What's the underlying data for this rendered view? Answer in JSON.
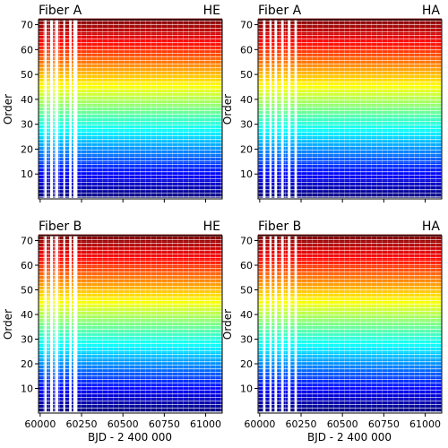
{
  "chart_data": {
    "type": "heatmap",
    "layout": "2x2 grid, shared x and y axes",
    "xlabel": "BJD - 2 400 000",
    "ylabel": "Order",
    "xlim": [
      59990,
      61100
    ],
    "ylim": [
      0,
      72
    ],
    "xticks": [
      60000,
      60250,
      60500,
      60750,
      61000
    ],
    "yticks": [
      10,
      20,
      30,
      40,
      50,
      60,
      70
    ],
    "colormap": "jet (blue at order 1 → red at order 72)",
    "colormap_stops": [
      "#00007f",
      "#0000ff",
      "#007fff",
      "#00ffff",
      "#7fff7f",
      "#ffff00",
      "#ff7f00",
      "#ff0000",
      "#7f0000"
    ],
    "panels": [
      {
        "title_left": "Fiber A",
        "title_right": "HE",
        "gaps_x": [
          [
            60025,
            60040
          ],
          [
            60060,
            60078
          ],
          [
            60090,
            60110
          ],
          [
            60140,
            60150
          ],
          [
            60175,
            60190
          ],
          [
            60200,
            60225
          ]
        ]
      },
      {
        "title_left": "Fiber A",
        "title_right": "HA",
        "gaps_x": [
          [
            60020,
            60035
          ],
          [
            60060,
            60072
          ],
          [
            60090,
            60105
          ],
          [
            60130,
            60145
          ],
          [
            60170,
            60185
          ],
          [
            60210,
            60225
          ]
        ]
      },
      {
        "title_left": "Fiber B",
        "title_right": "HE",
        "gaps_x": [
          [
            60025,
            60040
          ],
          [
            60060,
            60078
          ],
          [
            60090,
            60110
          ],
          [
            60140,
            60150
          ],
          [
            60175,
            60190
          ],
          [
            60200,
            60225
          ]
        ]
      },
      {
        "title_left": "Fiber B",
        "title_right": "HA",
        "gaps_x": [
          [
            60020,
            60035
          ],
          [
            60060,
            60072
          ],
          [
            60090,
            60105
          ],
          [
            60130,
            60145
          ],
          [
            60170,
            60185
          ],
          [
            60210,
            60225
          ]
        ]
      }
    ]
  }
}
